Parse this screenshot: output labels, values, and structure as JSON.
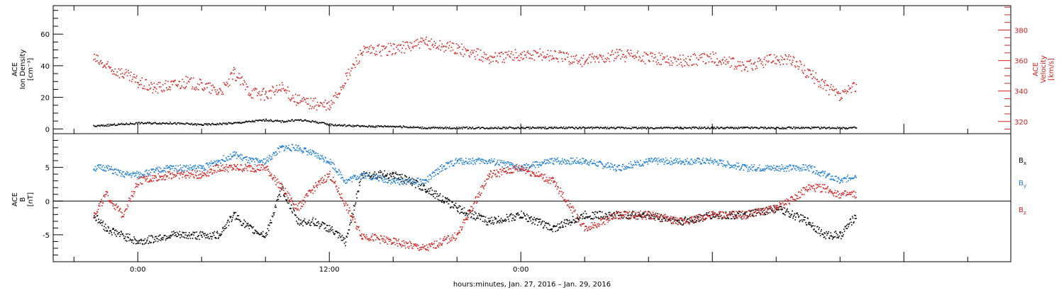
{
  "chart_data": [
    {
      "type": "scatter",
      "panel": "top",
      "left_axis": {
        "label_lines": [
          "ACE",
          "Ion Density",
          "[cm⁻³]"
        ],
        "range": [
          -3,
          78
        ],
        "ticks": [
          0,
          20,
          40,
          60
        ],
        "tick_labels": [
          "0",
          "20",
          "40",
          "60"
        ]
      },
      "right_axis": {
        "label_lines": [
          "ACE",
          "Velocity",
          "[km/s]"
        ],
        "range": [
          312,
          396
        ],
        "ticks": [
          320,
          340,
          360,
          380
        ],
        "tick_labels": [
          "320",
          "340",
          "360",
          "380"
        ],
        "color": "#d62020"
      },
      "series": [
        {
          "name": "",
          "axis": "left",
          "color": "#000000",
          "x": [
            -2.8,
            -1.5,
            0,
            2,
            4,
            6,
            8,
            9,
            10,
            11,
            12,
            14,
            16,
            18,
            20,
            22,
            24,
            26,
            28,
            30,
            32,
            34,
            36,
            38,
            40,
            42,
            45
          ],
          "y": [
            2,
            3,
            4,
            4,
            3,
            4,
            6,
            5,
            6,
            5,
            3,
            2,
            2,
            1,
            1,
            1,
            1,
            1,
            1,
            1,
            1,
            1,
            1,
            1,
            1,
            1,
            1
          ]
        },
        {
          "name": "",
          "axis": "right",
          "color": "#d62020",
          "x": [
            -2.8,
            -2.0,
            -1.0,
            0,
            1,
            2,
            3,
            4,
            5,
            5.5,
            6,
            7,
            8,
            9,
            10,
            11,
            12,
            13,
            14,
            16,
            18,
            20,
            22,
            24,
            26,
            28,
            30,
            32,
            34,
            36,
            38,
            40,
            41,
            42,
            43,
            44,
            45
          ],
          "y": [
            362,
            356,
            352,
            346,
            342,
            344,
            346,
            344,
            340,
            343,
            352,
            340,
            338,
            342,
            334,
            332,
            330,
            348,
            366,
            368,
            372,
            368,
            362,
            364,
            364,
            360,
            364,
            362,
            360,
            362,
            356,
            362,
            360,
            352,
            344,
            336,
            344
          ]
        }
      ]
    },
    {
      "type": "scatter",
      "panel": "bottom",
      "left_axis": {
        "label_lines": [
          "ACE",
          "B",
          "[nT]"
        ],
        "range": [
          -9,
          10
        ],
        "ticks": [
          -5,
          0,
          5
        ],
        "tick_labels": [
          "-5",
          "0",
          "5"
        ]
      },
      "zero_line": true,
      "legend_position": "right",
      "series": [
        {
          "name": "B",
          "subscript": "x",
          "color": "#000000",
          "x": [
            -2.8,
            -2.0,
            -1.0,
            0,
            2,
            4,
            5,
            6,
            7,
            8,
            9,
            10,
            11,
            12,
            13,
            14,
            16,
            18,
            20,
            22,
            24,
            26,
            28,
            30,
            32,
            34,
            36,
            38,
            40,
            42,
            43,
            44,
            45
          ],
          "y": [
            -2,
            -4,
            -5,
            -6,
            -5,
            -5,
            -5,
            -2,
            -4,
            -5,
            2,
            -3,
            -3,
            -4,
            -6,
            4,
            4,
            2,
            -1,
            -3,
            -2,
            -4,
            -2,
            -2,
            -2,
            -3,
            -2,
            -2,
            -1,
            -3,
            -5,
            -5,
            -2
          ]
        },
        {
          "name": "B",
          "subscript": "y",
          "color": "#1f7fd6",
          "x": [
            -2.8,
            -2.0,
            -1.0,
            0,
            2,
            4,
            5,
            6,
            7,
            8,
            9,
            10,
            11,
            12,
            13,
            14,
            16,
            18,
            19,
            20,
            22,
            24,
            26,
            28,
            30,
            32,
            34,
            36,
            38,
            40,
            42,
            43,
            44,
            45
          ],
          "y": [
            5,
            5,
            4,
            4,
            5,
            5,
            6,
            7,
            6,
            6,
            8,
            8,
            7,
            6,
            3,
            4,
            3,
            3,
            5,
            6,
            6,
            5,
            6,
            6,
            5,
            6,
            6,
            6,
            5,
            5,
            5,
            4,
            3,
            4
          ]
        },
        {
          "name": "B",
          "subscript": "z",
          "color": "#d62020",
          "x": [
            -2.8,
            -2.0,
            -1.0,
            0,
            2,
            4,
            5,
            6,
            7,
            8,
            9,
            10,
            11,
            12,
            14,
            16,
            18,
            20,
            22,
            24,
            26,
            28,
            30,
            32,
            34,
            36,
            38,
            40,
            42,
            43,
            44,
            45
          ],
          "y": [
            -2,
            1,
            -2,
            3,
            4,
            4,
            5,
            5,
            5,
            5,
            2,
            -1,
            2,
            4,
            -5,
            -6,
            -7,
            -5,
            4,
            5,
            3,
            -4,
            -2,
            -2,
            -3,
            -2,
            -2,
            -1,
            2,
            2,
            1,
            1
          ]
        }
      ]
    }
  ],
  "x_axis": {
    "range_hours": [
      -5.3,
      54.7
    ],
    "tick_hours": [
      0,
      12,
      24
    ],
    "tick_labels": [
      "0:00",
      "12:00",
      "0:00"
    ],
    "label": "hours:minutes, Jan. 27, 2016 – Jan. 29, 2016"
  }
}
